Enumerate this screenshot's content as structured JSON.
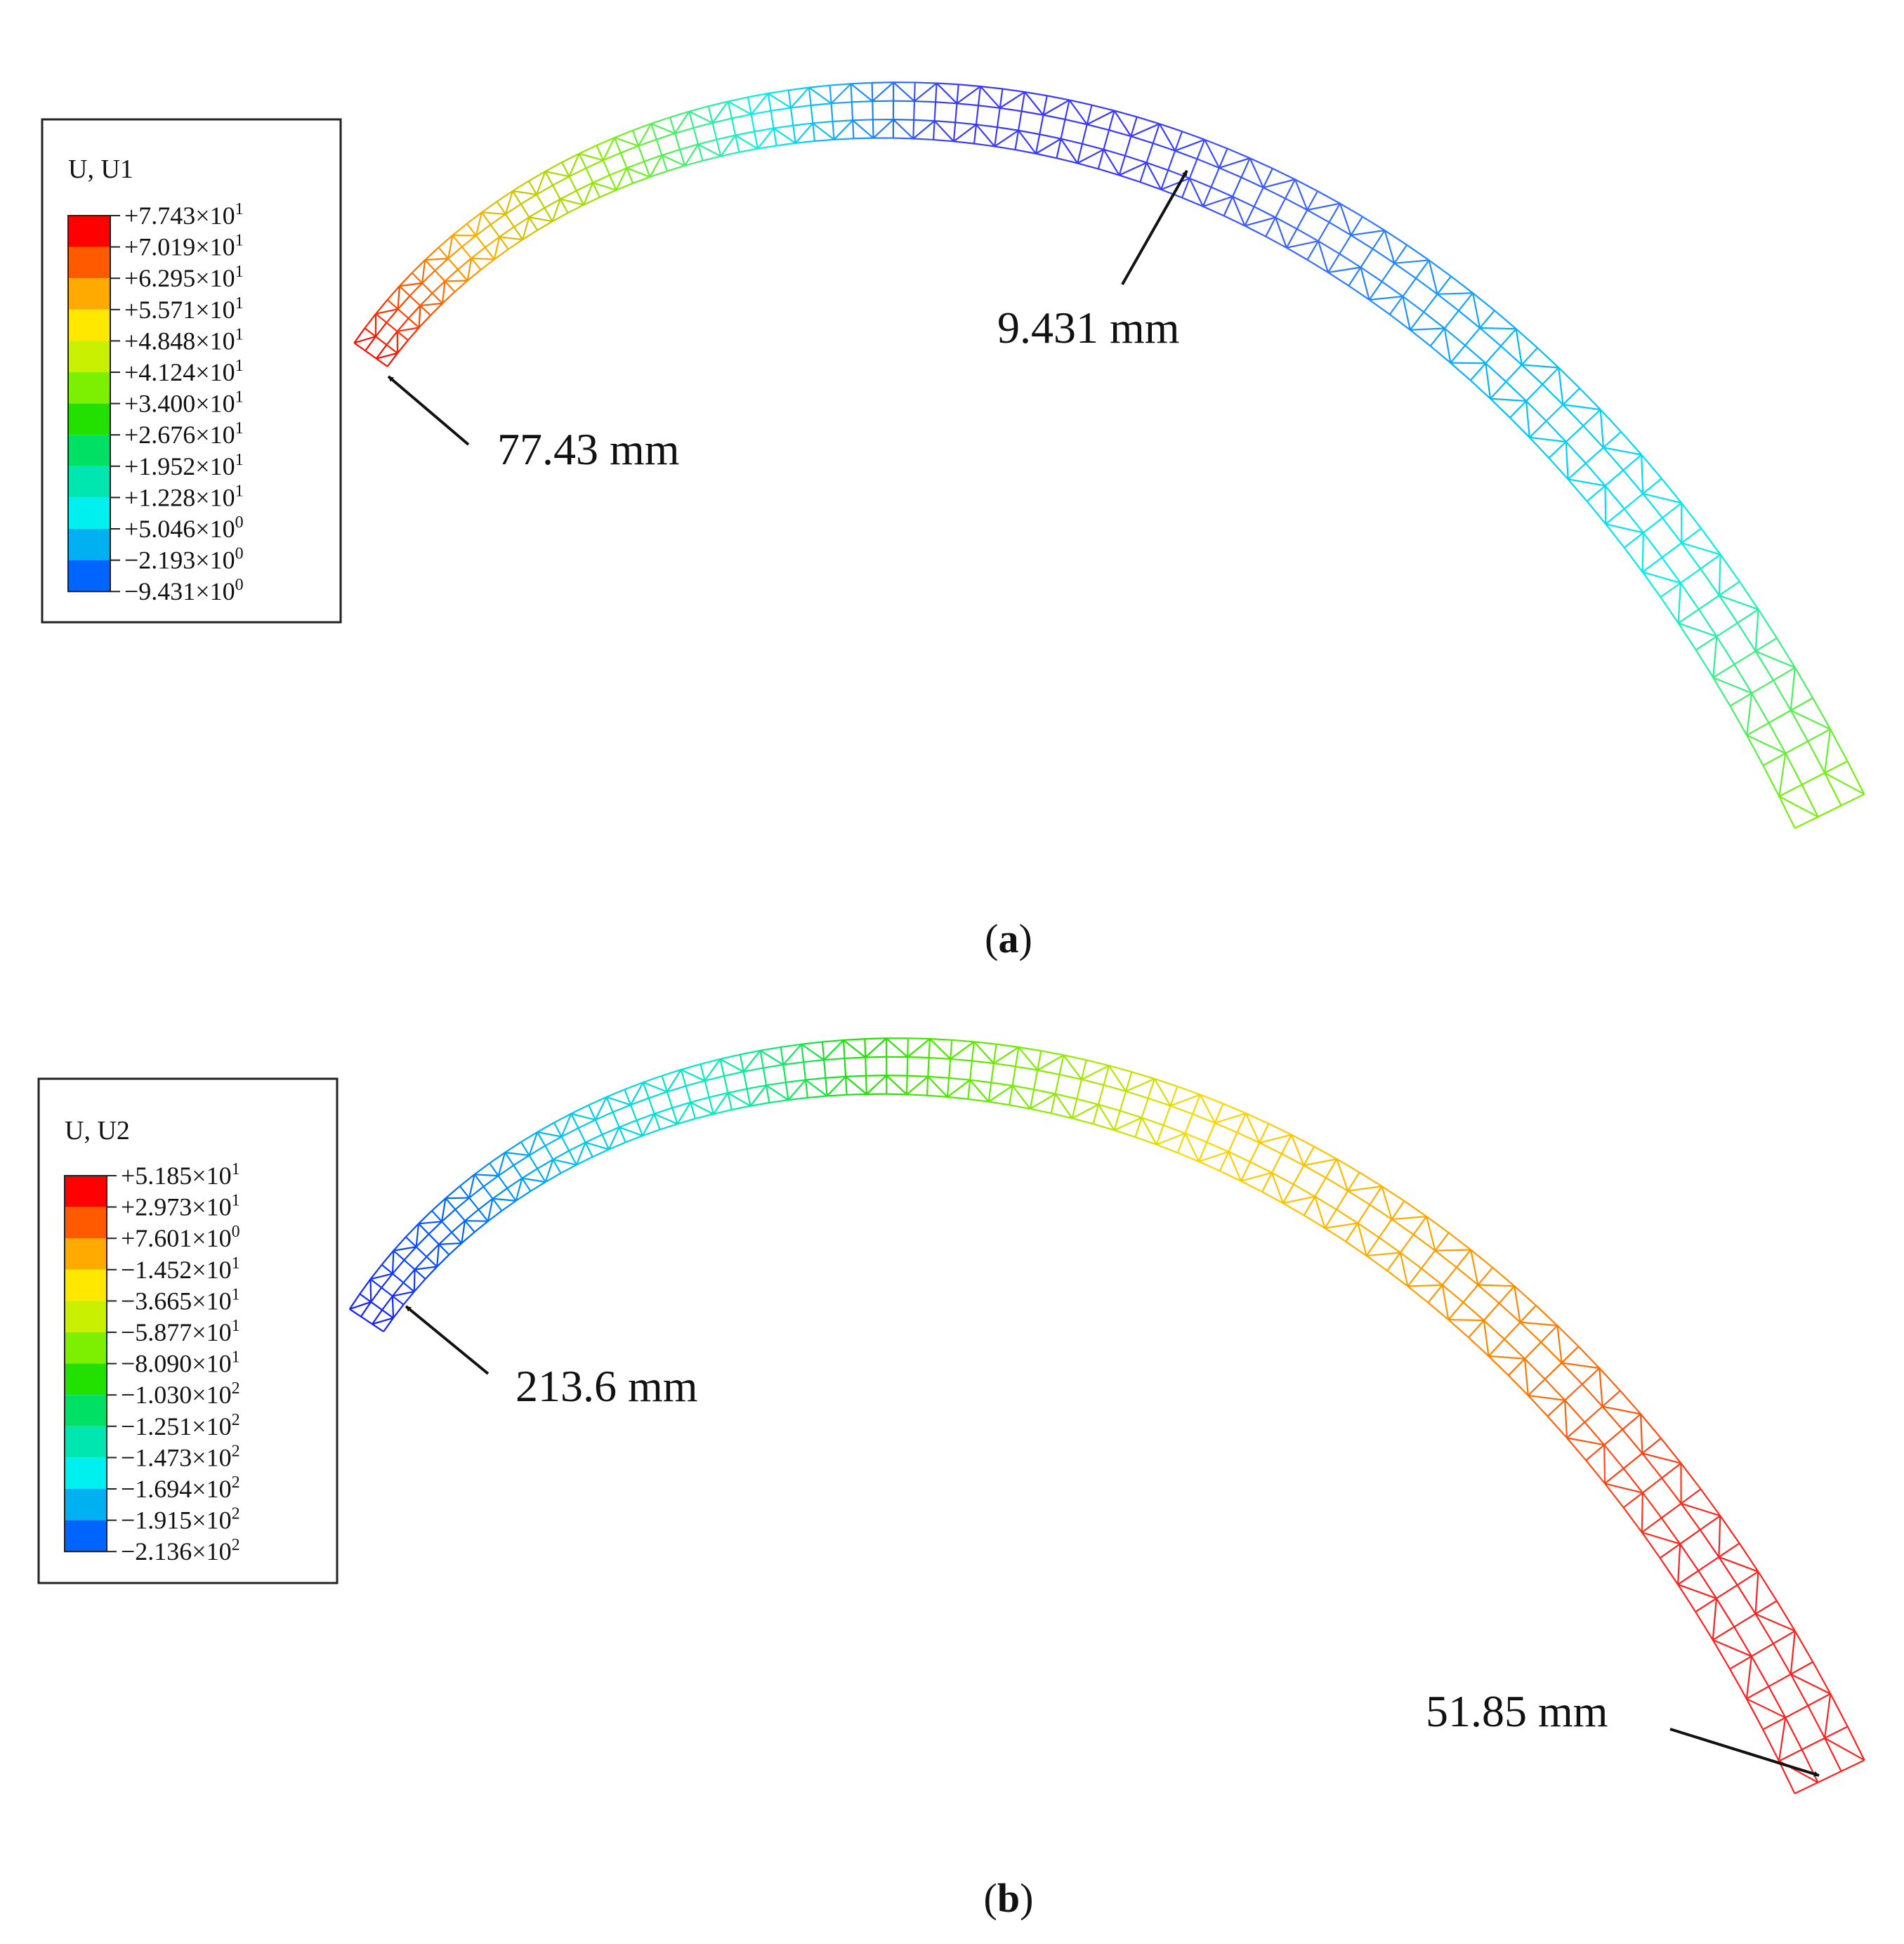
{
  "panels": [
    {
      "id": "a",
      "caption_letter": "a",
      "legend": {
        "title": "U, U1",
        "items": [
          {
            "mant": "+7.743",
            "exp": "1",
            "color": "#ff0000"
          },
          {
            "mant": "+7.019",
            "exp": "1",
            "color": "#ff5a00"
          },
          {
            "mant": "+6.295",
            "exp": "1",
            "color": "#ffaa00"
          },
          {
            "mant": "+5.571",
            "exp": "1",
            "color": "#ffe800"
          },
          {
            "mant": "+4.848",
            "exp": "1",
            "color": "#c8f000"
          },
          {
            "mant": "+4.124",
            "exp": "1",
            "color": "#7cf000"
          },
          {
            "mant": "+3.400",
            "exp": "1",
            "color": "#22e000"
          },
          {
            "mant": "+2.676",
            "exp": "1",
            "color": "#00e064"
          },
          {
            "mant": "+1.952",
            "exp": "1",
            "color": "#00e6b0"
          },
          {
            "mant": "+1.228",
            "exp": "1",
            "color": "#00f0f0"
          },
          {
            "mant": "+5.046",
            "exp": "0",
            "color": "#00b0f0"
          },
          {
            "mant": "−2.193",
            "exp": "0",
            "color": "#0064ff"
          },
          {
            "mant": "−9.431",
            "exp": "0",
            "color": "#0014ff"
          }
        ]
      },
      "gradient_stops": [
        "#ff0000",
        "#ffaa00",
        "#80f000",
        "#00f0f0",
        "#3a3aff",
        "#3a3aff",
        "#3a6aff",
        "#00b8ff",
        "#00f0f0",
        "#7cf000"
      ],
      "annotations": [
        {
          "label": "77.43 mm"
        },
        {
          "label": "9.431 mm"
        }
      ]
    },
    {
      "id": "b",
      "caption_letter": "b",
      "legend": {
        "title": "U, U2",
        "items": [
          {
            "mant": "+5.185",
            "exp": "1",
            "color": "#ff0000"
          },
          {
            "mant": "+2.973",
            "exp": "1",
            "color": "#ff5a00"
          },
          {
            "mant": "+7.601",
            "exp": "0",
            "color": "#ffaa00"
          },
          {
            "mant": "−1.452",
            "exp": "1",
            "color": "#ffe800"
          },
          {
            "mant": "−3.665",
            "exp": "1",
            "color": "#c8f000"
          },
          {
            "mant": "−5.877",
            "exp": "1",
            "color": "#7cf000"
          },
          {
            "mant": "−8.090",
            "exp": "1",
            "color": "#22e000"
          },
          {
            "mant": "−1.030",
            "exp": "2",
            "color": "#00e064"
          },
          {
            "mant": "−1.251",
            "exp": "2",
            "color": "#00e6b0"
          },
          {
            "mant": "−1.473",
            "exp": "2",
            "color": "#00f0f0"
          },
          {
            "mant": "−1.694",
            "exp": "2",
            "color": "#00b0f0"
          },
          {
            "mant": "−1.915",
            "exp": "2",
            "color": "#0064ff"
          },
          {
            "mant": "−2.136",
            "exp": "2",
            "color": "#0014ff"
          }
        ]
      },
      "gradient_stops": [
        "#1a1aff",
        "#0064ff",
        "#00c8f0",
        "#00f0c0",
        "#22e000",
        "#7cf000",
        "#ffd800",
        "#ffb000",
        "#ff7a00",
        "#ff2020",
        "#ff2020"
      ],
      "annotations": [
        {
          "label": "213.6 mm"
        },
        {
          "label": "51.85 mm"
        }
      ]
    }
  ]
}
